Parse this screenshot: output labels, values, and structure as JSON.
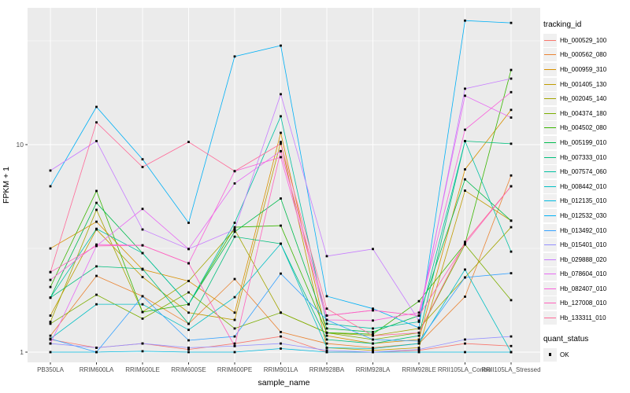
{
  "figure": {
    "background": "#FFFFFF",
    "panel_background": "#EBEBEB",
    "grid_color": "#FFFFFF",
    "tick_text_color": "#4D4D4D",
    "tick_mark_color": "#333333",
    "marker_color": "#000000"
  },
  "chart_data": {
    "type": "line",
    "title": "",
    "xlabel": "sample_name",
    "ylabel": "FPKM + 1",
    "y_scale": "log10",
    "y_major_ticks": [
      1,
      10
    ],
    "y_minor_gridlines": [
      3.162,
      31.623
    ],
    "ylim": [
      0.9,
      46
    ],
    "grid": true,
    "legend_position": "right",
    "legend_title": "tracking_id",
    "marker": "black-square",
    "quant_status_legend": {
      "title": "quant_status",
      "items": [
        "OK"
      ]
    },
    "categories": [
      "PB350LA",
      "RRIM600LA",
      "RRIM600LE",
      "RRIM600SE",
      "RRIM600PE",
      "RRIM901LA",
      "RRIM928BA",
      "RRIM928LA",
      "RRIM928LE",
      "RRII105LA_Control",
      "RRII105LA_Stressed"
    ],
    "series": [
      {
        "name": "Hb_000529_100",
        "color": "#F8766D",
        "values": [
          1.15,
          1.05,
          1.1,
          1.03,
          1.1,
          1.19,
          1.0,
          1.0,
          1.02,
          1.1,
          1.07
        ]
      },
      {
        "name": "Hb_000562_080",
        "color": "#EA8331",
        "values": [
          1.2,
          2.33,
          1.86,
          1.37,
          2.25,
          1.25,
          1.1,
          1.05,
          1.1,
          1.85,
          7.1
        ]
      },
      {
        "name": "Hb_000959_310",
        "color": "#D89000",
        "values": [
          3.16,
          4.25,
          2.5,
          2.2,
          1.55,
          11.4,
          1.2,
          1.1,
          1.15,
          7.6,
          14.7
        ]
      },
      {
        "name": "Hb_001405_130",
        "color": "#C09B00",
        "values": [
          1.5,
          3.9,
          2.3,
          1.55,
          1.43,
          10.3,
          1.05,
          1.02,
          1.05,
          6.0,
          4.3
        ]
      },
      {
        "name": "Hb_002045_140",
        "color": "#A3A500",
        "values": [
          1.4,
          4.85,
          1.56,
          2.2,
          3.9,
          1.55,
          1.24,
          1.2,
          1.3,
          2.29,
          4.0
        ]
      },
      {
        "name": "Hb_004374_180",
        "color": "#7CAE00",
        "values": [
          1.37,
          1.89,
          1.45,
          1.94,
          1.3,
          1.55,
          1.24,
          1.15,
          1.24,
          3.3,
          1.78
        ]
      },
      {
        "name": "Hb_004502_080",
        "color": "#39B600",
        "values": [
          2.06,
          5.98,
          1.56,
          1.7,
          4.0,
          4.07,
          1.24,
          1.22,
          1.76,
          3.33,
          22.9
        ]
      },
      {
        "name": "Hb_005199_010",
        "color": "#00BB4E",
        "values": [
          1.83,
          5.24,
          3.0,
          1.7,
          3.8,
          5.5,
          1.3,
          1.25,
          1.5,
          6.8,
          4.3
        ]
      },
      {
        "name": "Hb_007333_010",
        "color": "#00BF7D",
        "values": [
          1.83,
          2.59,
          2.52,
          1.37,
          3.6,
          3.33,
          1.15,
          1.1,
          1.2,
          10.4,
          10.1
        ]
      },
      {
        "name": "Hb_007574_060",
        "color": "#00C1A3",
        "values": [
          1.83,
          3.93,
          3.0,
          1.7,
          4.2,
          13.7,
          1.37,
          1.3,
          1.4,
          10.4,
          3.05
        ]
      },
      {
        "name": "Hb_008442_010",
        "color": "#00BFC4",
        "values": [
          1.16,
          1.7,
          1.7,
          1.28,
          1.84,
          3.33,
          1.05,
          1.04,
          1.1,
          2.5,
          1.0
        ]
      },
      {
        "name": "Hb_012135_010",
        "color": "#00BAE0",
        "values": [
          1.0,
          1.0,
          1.01,
          1.0,
          1.0,
          1.04,
          1.0,
          1.0,
          1.0,
          1.0,
          1.0
        ]
      },
      {
        "name": "Hb_012532_030",
        "color": "#00B0F6",
        "values": [
          6.3,
          15.2,
          8.5,
          4.2,
          26.6,
          30.0,
          1.86,
          1.62,
          1.31,
          39.6,
          38.6
        ]
      },
      {
        "name": "Hb_013492_010",
        "color": "#35A2FF",
        "values": [
          1.16,
          1.0,
          1.86,
          1.14,
          1.19,
          2.39,
          1.43,
          1.15,
          1.13,
          2.29,
          2.4
        ]
      },
      {
        "name": "Hb_015401_010",
        "color": "#9590FF",
        "values": [
          1.1,
          1.05,
          1.1,
          1.05,
          1.07,
          1.1,
          1.02,
          1.0,
          1.03,
          1.15,
          1.19
        ]
      },
      {
        "name": "Hb_029888_020",
        "color": "#C77CFF",
        "values": [
          7.5,
          10.4,
          3.9,
          3.14,
          3.9,
          17.5,
          2.9,
          3.14,
          1.42,
          18.6,
          20.8
        ]
      },
      {
        "name": "Hb_078604_010",
        "color": "#E76BF3",
        "values": [
          1.1,
          3.25,
          4.9,
          3.14,
          6.5,
          9.3,
          1.5,
          1.59,
          1.5,
          17.2,
          13.5
        ]
      },
      {
        "name": "Hb_082407_010",
        "color": "#FA62DB",
        "values": [
          2.23,
          3.3,
          3.27,
          2.68,
          7.45,
          8.7,
          1.43,
          1.42,
          1.55,
          11.8,
          17.9
        ]
      },
      {
        "name": "Hb_127008_010",
        "color": "#FF62BC",
        "values": [
          2.43,
          3.25,
          3.27,
          2.68,
          1.07,
          9.3,
          1.5,
          1.59,
          1.5,
          3.33,
          6.3
        ]
      },
      {
        "name": "Hb_133311_010",
        "color": "#FF6A98",
        "values": [
          2.43,
          12.8,
          7.8,
          10.3,
          7.45,
          10.1,
          1.62,
          1.2,
          1.24,
          3.4,
          6.3
        ]
      }
    ]
  }
}
